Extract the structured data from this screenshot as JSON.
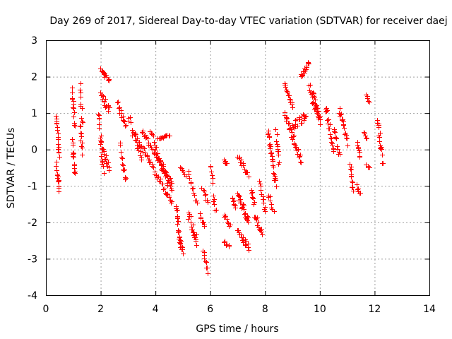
{
  "chart_data": {
    "type": "scatter",
    "title": "Day 269 of 2017, Sidereal Day-to-day VTEC variation (SDTVAR) for receiver daej",
    "xlabel": "GPS time / hours",
    "ylabel": "SDTVAR / TECUs",
    "xlim": [
      0,
      14
    ],
    "ylim": [
      -4,
      3
    ],
    "xticks": [
      0,
      2,
      4,
      6,
      8,
      10,
      12,
      14
    ],
    "yticks": [
      -4,
      -3,
      -2,
      -1,
      0,
      1,
      2,
      3
    ],
    "grid": true,
    "marker": "+",
    "color": "#ff0000",
    "series": [
      {
        "name": "SDTVAR",
        "tracks": [
          {
            "t": [
              0.38,
              0.48
            ],
            "v": [
              0.9,
              -0.2
            ],
            "n": 18,
            "s": 0.15
          },
          {
            "t": [
              0.38,
              0.48
            ],
            "v": [
              -0.4,
              -1.1
            ],
            "n": 14,
            "s": 0.15
          },
          {
            "t": [
              0.95,
              1.05
            ],
            "v": [
              1.65,
              0.6
            ],
            "n": 14,
            "s": 0.2
          },
          {
            "t": [
              0.95,
              1.05
            ],
            "v": [
              0.2,
              -0.7
            ],
            "n": 14,
            "s": 0.2
          },
          {
            "t": [
              1.25,
              1.32
            ],
            "v": [
              1.8,
              0.7
            ],
            "n": 10,
            "s": 0.15
          },
          {
            "t": [
              1.25,
              1.32
            ],
            "v": [
              0.7,
              -0.1
            ],
            "n": 10,
            "s": 0.15
          },
          {
            "t": [
              1.9,
              2.1
            ],
            "v": [
              1.0,
              -0.6
            ],
            "n": 18,
            "s": 0.3
          },
          {
            "t": [
              2.0,
              2.3
            ],
            "v": [
              2.2,
              1.9
            ],
            "n": 16,
            "s": 0.12
          },
          {
            "t": [
              2.0,
              2.3
            ],
            "v": [
              1.5,
              1.1
            ],
            "n": 16,
            "s": 0.25
          },
          {
            "t": [
              2.0,
              2.3
            ],
            "v": [
              0.1,
              -0.5
            ],
            "n": 16,
            "s": 0.2
          },
          {
            "t": [
              2.6,
              2.9
            ],
            "v": [
              1.3,
              0.6
            ],
            "n": 14,
            "s": 0.15
          },
          {
            "t": [
              2.7,
              2.9
            ],
            "v": [
              0.2,
              -0.9
            ],
            "n": 14,
            "s": 0.2
          },
          {
            "t": [
              3.0,
              3.5
            ],
            "v": [
              0.9,
              -0.3
            ],
            "n": 20,
            "s": 0.3
          },
          {
            "t": [
              3.2,
              4.6
            ],
            "v": [
              0.5,
              -1.5
            ],
            "n": 46,
            "s": 0.15
          },
          {
            "t": [
              3.5,
              4.6
            ],
            "v": [
              0.5,
              -0.9
            ],
            "n": 40,
            "s": 0.12
          },
          {
            "t": [
              3.8,
              4.6
            ],
            "v": [
              0.5,
              -1.2
            ],
            "n": 24,
            "s": 0.2
          },
          {
            "t": [
              4.1,
              4.5
            ],
            "v": [
              0.3,
              0.4
            ],
            "n": 14,
            "s": 0.05
          },
          {
            "t": [
              4.2,
              4.5
            ],
            "v": [
              -0.5,
              -0.9
            ],
            "n": 10,
            "s": 0.15
          },
          {
            "t": [
              4.75,
              4.9
            ],
            "v": [
              -1.5,
              -2.7
            ],
            "n": 18,
            "s": 0.25
          },
          {
            "t": [
              4.9,
              5.1
            ],
            "v": [
              -0.5,
              -0.7
            ],
            "n": 6,
            "s": 0.1
          },
          {
            "t": [
              4.9,
              5.0
            ],
            "v": [
              -2.5,
              -2.8
            ],
            "n": 10,
            "s": 0.15
          },
          {
            "t": [
              5.2,
              5.5
            ],
            "v": [
              -0.6,
              -1.5
            ],
            "n": 12,
            "s": 0.15
          },
          {
            "t": [
              5.2,
              5.5
            ],
            "v": [
              -1.8,
              -2.5
            ],
            "n": 20,
            "s": 0.3
          },
          {
            "t": [
              5.6,
              5.8
            ],
            "v": [
              -1.8,
              -2.1
            ],
            "n": 8,
            "s": 0.15
          },
          {
            "t": [
              5.7,
              5.9
            ],
            "v": [
              -1.0,
              -1.5
            ],
            "n": 8,
            "s": 0.15
          },
          {
            "t": [
              5.75,
              5.9
            ],
            "v": [
              -2.8,
              -3.3
            ],
            "n": 10,
            "s": 0.2
          },
          {
            "t": [
              6.0,
              6.1
            ],
            "v": [
              -0.4,
              -0.9
            ],
            "n": 6,
            "s": 0.1
          },
          {
            "t": [
              6.1,
              6.2
            ],
            "v": [
              -1.3,
              -1.7
            ],
            "n": 6,
            "s": 0.1
          },
          {
            "t": [
              6.5,
              6.6
            ],
            "v": [
              -0.3,
              -0.4
            ],
            "n": 6,
            "s": 0.05
          },
          {
            "t": [
              6.5,
              6.7
            ],
            "v": [
              -1.8,
              -2.1
            ],
            "n": 8,
            "s": 0.1
          },
          {
            "t": [
              6.5,
              6.7
            ],
            "v": [
              -2.5,
              -2.7
            ],
            "n": 6,
            "s": 0.1
          },
          {
            "t": [
              6.8,
              6.9
            ],
            "v": [
              -1.3,
              -1.6
            ],
            "n": 8,
            "s": 0.1
          },
          {
            "t": [
              7.0,
              7.4
            ],
            "v": [
              -0.2,
              -0.7
            ],
            "n": 14,
            "s": 0.15
          },
          {
            "t": [
              7.0,
              7.4
            ],
            "v": [
              -1.2,
              -2.0
            ],
            "n": 24,
            "s": 0.25
          },
          {
            "t": [
              7.0,
              7.4
            ],
            "v": [
              -2.2,
              -2.7
            ],
            "n": 16,
            "s": 0.2
          },
          {
            "t": [
              7.5,
              7.6
            ],
            "v": [
              -1.1,
              -1.5
            ],
            "n": 8,
            "s": 0.1
          },
          {
            "t": [
              7.6,
              7.9
            ],
            "v": [
              -1.8,
              -2.3
            ],
            "n": 14,
            "s": 0.2
          },
          {
            "t": [
              7.8,
              8.0
            ],
            "v": [
              -0.9,
              -1.7
            ],
            "n": 12,
            "s": 0.2
          },
          {
            "t": [
              8.1,
              8.4
            ],
            "v": [
              0.5,
              -1.0
            ],
            "n": 26,
            "s": 0.2
          },
          {
            "t": [
              8.1,
              8.3
            ],
            "v": [
              -1.2,
              -1.7
            ],
            "n": 8,
            "s": 0.15
          },
          {
            "t": [
              8.4,
              8.5
            ],
            "v": [
              0.6,
              -0.4
            ],
            "n": 12,
            "s": 0.2
          },
          {
            "t": [
              8.7,
              9.0
            ],
            "v": [
              1.8,
              1.2
            ],
            "n": 16,
            "s": 0.12
          },
          {
            "t": [
              8.7,
              9.3
            ],
            "v": [
              1.0,
              -0.3
            ],
            "n": 30,
            "s": 0.2
          },
          {
            "t": [
              9.0,
              9.5
            ],
            "v": [
              0.6,
              1.0
            ],
            "n": 20,
            "s": 0.25
          },
          {
            "t": [
              9.3,
              9.6
            ],
            "v": [
              2.0,
              2.4
            ],
            "n": 14,
            "s": 0.1
          },
          {
            "t": [
              9.6,
              10.0
            ],
            "v": [
              1.8,
              0.9
            ],
            "n": 22,
            "s": 0.2
          },
          {
            "t": [
              9.7,
              10.0
            ],
            "v": [
              1.4,
              0.8
            ],
            "n": 16,
            "s": 0.2
          },
          {
            "t": [
              10.2,
              10.5
            ],
            "v": [
              1.2,
              0.0
            ],
            "n": 20,
            "s": 0.3
          },
          {
            "t": [
              10.5,
              10.7
            ],
            "v": [
              0.6,
              -0.2
            ],
            "n": 12,
            "s": 0.2
          },
          {
            "t": [
              10.7,
              11.0
            ],
            "v": [
              1.1,
              0.2
            ],
            "n": 18,
            "s": 0.25
          },
          {
            "t": [
              11.1,
              11.2
            ],
            "v": [
              -0.4,
              -1.1
            ],
            "n": 12,
            "s": 0.15
          },
          {
            "t": [
              11.35,
              11.45
            ],
            "v": [
              0.2,
              -0.2
            ],
            "n": 8,
            "s": 0.1
          },
          {
            "t": [
              11.35,
              11.45
            ],
            "v": [
              -1.0,
              -1.2
            ],
            "n": 6,
            "s": 0.1
          },
          {
            "t": [
              11.6,
              11.7
            ],
            "v": [
              0.5,
              0.3
            ],
            "n": 6,
            "s": 0.05
          },
          {
            "t": [
              11.7,
              11.8
            ],
            "v": [
              1.5,
              1.3
            ],
            "n": 5,
            "s": 0.05
          },
          {
            "t": [
              11.7,
              11.8
            ],
            "v": [
              -0.4,
              -0.5
            ],
            "n": 4,
            "s": 0.05
          },
          {
            "t": [
              12.1,
              12.3
            ],
            "v": [
              0.8,
              -0.3
            ],
            "n": 18,
            "s": 0.3
          }
        ]
      }
    ]
  }
}
